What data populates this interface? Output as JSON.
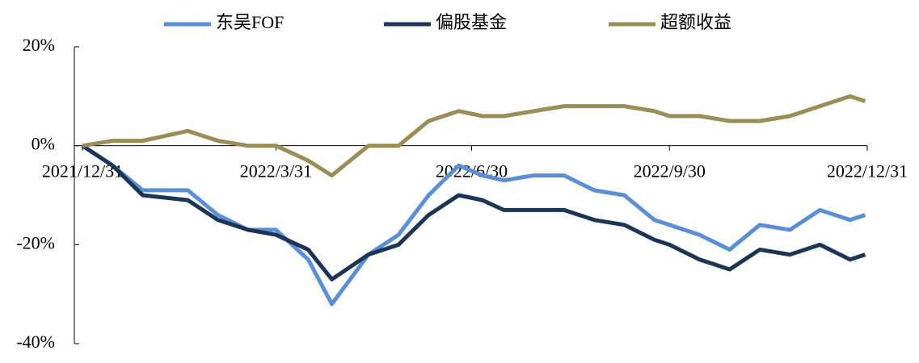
{
  "chart_data": {
    "type": "line",
    "x": [
      "2021/12/31",
      "2022/1/14",
      "2022/1/28",
      "2022/2/18",
      "2022/3/4",
      "2022/3/18",
      "2022/3/31",
      "2022/4/15",
      "2022/4/26",
      "2022/5/13",
      "2022/5/27",
      "2022/6/10",
      "2022/6/24",
      "2022/7/5",
      "2022/7/15",
      "2022/7/29",
      "2022/8/12",
      "2022/8/26",
      "2022/9/9",
      "2022/9/23",
      "2022/9/30",
      "2022/10/14",
      "2022/10/28",
      "2022/11/11",
      "2022/11/25",
      "2022/12/9",
      "2022/12/23",
      "2022/12/30"
    ],
    "series": [
      {
        "name": "东吴FOF",
        "color": "#5a8fd8",
        "values": [
          0,
          -4,
          -9,
          -9,
          -14,
          -17,
          -17,
          -23,
          -32,
          -22,
          -18,
          -10,
          -4,
          -6,
          -7,
          -6,
          -6,
          -9,
          -10,
          -15,
          -16,
          -18,
          -21,
          -16,
          -17,
          -13,
          -15,
          -14
        ]
      },
      {
        "name": "偏股基金",
        "color": "#1c3557",
        "values": [
          0,
          -4,
          -10,
          -11,
          -15,
          -17,
          -18,
          -21,
          -27,
          -22,
          -20,
          -14,
          -10,
          -11,
          -13,
          -13,
          -13,
          -15,
          -16,
          -19,
          -20,
          -23,
          -25,
          -21,
          -22,
          -20,
          -23,
          -22
        ]
      },
      {
        "name": "超额收益",
        "color": "#9a8d55",
        "values": [
          0,
          1,
          1,
          3,
          1,
          0,
          0,
          -3,
          -6,
          0,
          0,
          5,
          7,
          6,
          6,
          7,
          8,
          8,
          8,
          7,
          6,
          6,
          5,
          5,
          6,
          8,
          10,
          9
        ]
      }
    ],
    "xlim": [
      "2021/12/31",
      "2022/12/31"
    ],
    "xticks": [
      "2021/12/31",
      "2022/3/31",
      "2022/6/30",
      "2022/9/30",
      "2022/12/31"
    ],
    "ylim": [
      -40,
      20
    ],
    "yticks": [
      {
        "value": -40,
        "label": "-40%"
      },
      {
        "value": -20,
        "label": "-20%"
      },
      {
        "value": 0,
        "label": "0%"
      },
      {
        "value": 20,
        "label": "20%"
      }
    ],
    "legend": "top"
  }
}
